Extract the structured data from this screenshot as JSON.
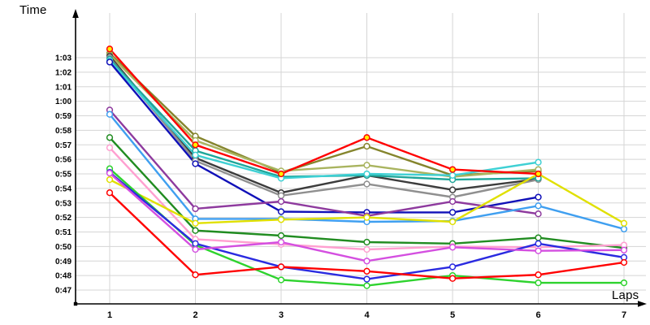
{
  "chart": {
    "y_title": "Time",
    "x_title": "Laps"
  },
  "chart_data": {
    "type": "line",
    "title": "",
    "xlabel": "Laps",
    "ylabel": "Time",
    "legend": false,
    "grid": true,
    "y_unit": "min:sec lap times",
    "ylim": [
      46.5,
      64.5
    ],
    "x_ticks": [
      1,
      2,
      3,
      4,
      5,
      6,
      7
    ],
    "y_ticks": [
      {
        "value": 63,
        "label": "1:03"
      },
      {
        "value": 62,
        "label": "1:02"
      },
      {
        "value": 61,
        "label": "1:01"
      },
      {
        "value": 60,
        "label": "1:00"
      },
      {
        "value": 59,
        "label": "0:59"
      },
      {
        "value": 58,
        "label": "0:58"
      },
      {
        "value": 57,
        "label": "0:57"
      },
      {
        "value": 56,
        "label": "0:56"
      },
      {
        "value": 55,
        "label": "0:55"
      },
      {
        "value": 54,
        "label": "0:54"
      },
      {
        "value": 53,
        "label": "0:53"
      },
      {
        "value": 52,
        "label": "0:52"
      },
      {
        "value": 51,
        "label": "0:51"
      },
      {
        "value": 50,
        "label": "0:50"
      },
      {
        "value": 49,
        "label": "0:49"
      },
      {
        "value": 48,
        "label": "0:48"
      },
      {
        "value": 47,
        "label": "0:47"
      }
    ],
    "series": [
      {
        "name": "olive",
        "color": "#85852d",
        "marker_fill": "#ffffff",
        "values": [
          63.3,
          57.6,
          55.1,
          56.9,
          54.9,
          55.2,
          null
        ]
      },
      {
        "name": "khaki",
        "color": "#a9b45f",
        "marker_fill": "#ffffff",
        "values": [
          63.2,
          57.3,
          55.2,
          55.6,
          54.8,
          55.3,
          null
        ]
      },
      {
        "name": "black",
        "color": "#3c3c3c",
        "marker_fill": "#ffffff",
        "values": [
          63.1,
          56.1,
          53.7,
          54.9,
          53.9,
          54.65,
          null
        ]
      },
      {
        "name": "gray",
        "color": "#8f8f8f",
        "marker_fill": "#ffffff",
        "values": [
          63.0,
          55.9,
          53.5,
          54.3,
          53.4,
          54.6,
          null
        ]
      },
      {
        "name": "teal",
        "color": "#1fa69a",
        "marker_fill": "#ffffff",
        "values": [
          62.9,
          56.6,
          54.8,
          54.9,
          54.6,
          54.7,
          null
        ]
      },
      {
        "name": "cyan",
        "color": "#3fd0d4",
        "marker_fill": "#ffffff",
        "values": [
          62.8,
          56.3,
          54.7,
          55.0,
          54.9,
          55.8,
          null
        ]
      },
      {
        "name": "navy-blue",
        "color": "#1010b8",
        "marker_fill": "#ffffff",
        "values": [
          62.7,
          55.7,
          52.4,
          52.35,
          52.35,
          53.4,
          null
        ]
      },
      {
        "name": "purple",
        "color": "#8e3a9e",
        "marker_fill": "#ffffff",
        "values": [
          59.4,
          52.6,
          53.1,
          52.1,
          53.1,
          52.25,
          null
        ]
      },
      {
        "name": "light-blue",
        "color": "#3f9ff0",
        "marker_fill": "#ffffff",
        "values": [
          59.1,
          51.9,
          51.9,
          51.7,
          51.75,
          52.8,
          51.2
        ]
      },
      {
        "name": "dark-green",
        "color": "#218c21",
        "marker_fill": "#ffffff",
        "values": [
          57.5,
          51.1,
          50.75,
          50.3,
          50.2,
          50.6,
          49.9
        ]
      },
      {
        "name": "pink",
        "color": "#ff9fd0",
        "marker_fill": "#ffffff",
        "values": [
          56.8,
          50.5,
          50.15,
          49.8,
          50.0,
          49.95,
          50.1
        ]
      },
      {
        "name": "yellow",
        "color": "#e0e000",
        "marker_fill": "#ffffff",
        "values": [
          54.6,
          51.6,
          51.85,
          52.0,
          51.7,
          55.0,
          51.6
        ]
      },
      {
        "name": "light-green",
        "color": "#2ed32e",
        "marker_fill": "#ffffff",
        "values": [
          55.35,
          50.1,
          47.7,
          47.3,
          48.0,
          47.5,
          47.5
        ]
      },
      {
        "name": "royal-blue",
        "color": "#2a2ae0",
        "marker_fill": "#ffffff",
        "values": [
          55.1,
          50.2,
          48.6,
          47.75,
          48.6,
          50.2,
          49.25
        ]
      },
      {
        "name": "violet",
        "color": "#d44fe0",
        "marker_fill": "#ffffff",
        "values": [
          55.05,
          49.8,
          50.3,
          49.0,
          49.95,
          49.7,
          49.75
        ]
      },
      {
        "name": "red-2",
        "color": "#ff0000",
        "marker_fill": "#ffffff",
        "values": [
          53.7,
          48.05,
          48.6,
          48.3,
          47.8,
          48.05,
          48.9
        ]
      },
      {
        "name": "red-1",
        "color": "#ff0000",
        "marker_fill": "#ffee00",
        "values": [
          63.6,
          57.0,
          55.0,
          57.5,
          55.3,
          55.0,
          null
        ]
      }
    ]
  }
}
